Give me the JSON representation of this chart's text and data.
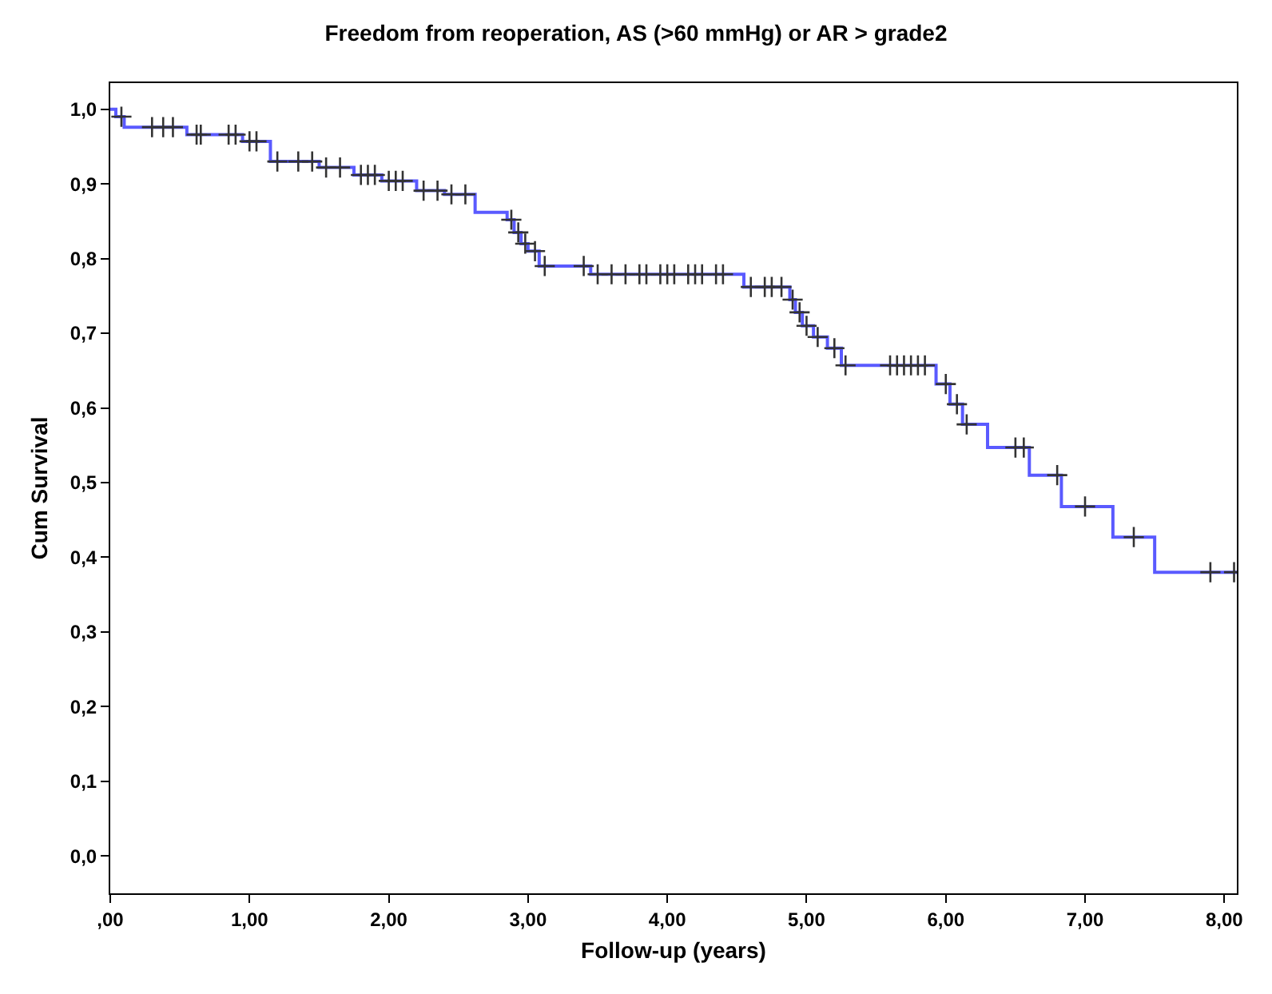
{
  "chart_data": {
    "type": "step",
    "title": "Freedom from reoperation, AS (>60 mmHg) or AR > grade2",
    "xlabel": "Follow-up (years)",
    "ylabel": "Cum Survival",
    "xlim": [
      0,
      8.09
    ],
    "ylim": [
      -0.05,
      1.035
    ],
    "xticks": [
      {
        "value": 0,
        "label": ",00"
      },
      {
        "value": 1,
        "label": "1,00"
      },
      {
        "value": 2,
        "label": "2,00"
      },
      {
        "value": 3,
        "label": "3,00"
      },
      {
        "value": 4,
        "label": "4,00"
      },
      {
        "value": 5,
        "label": "5,00"
      },
      {
        "value": 6,
        "label": "6,00"
      },
      {
        "value": 7,
        "label": "7,00"
      },
      {
        "value": 8,
        "label": "8,00"
      }
    ],
    "yticks": [
      {
        "value": 0,
        "label": "0,0"
      },
      {
        "value": 0.1,
        "label": "0,1"
      },
      {
        "value": 0.2,
        "label": "0,2"
      },
      {
        "value": 0.3,
        "label": "0,3"
      },
      {
        "value": 0.4,
        "label": "0,4"
      },
      {
        "value": 0.5,
        "label": "0,5"
      },
      {
        "value": 0.6,
        "label": "0,6"
      },
      {
        "value": 0.7,
        "label": "0,7"
      },
      {
        "value": 0.8,
        "label": "0,8"
      },
      {
        "value": 0.9,
        "label": "0,9"
      },
      {
        "value": 1,
        "label": "1,0"
      }
    ],
    "grid": false,
    "marker": "none",
    "line_style": "solid",
    "series": [
      {
        "color": "#5a5aff",
        "x": [
          0,
          0.04,
          0.1,
          0.55,
          0.95,
          1.15,
          1.5,
          1.75,
          1.95,
          2.2,
          2.4,
          2.62,
          2.85,
          2.9,
          2.95,
          3.0,
          3.08,
          3.45,
          4.55,
          4.88,
          4.92,
          4.97,
          5.05,
          5.15,
          5.25,
          5.93,
          6.03,
          6.12,
          6.3,
          6.6,
          6.83,
          7.2,
          7.5,
          8.09
        ],
        "values": [
          1.0,
          0.99,
          0.976,
          0.966,
          0.957,
          0.93,
          0.922,
          0.912,
          0.904,
          0.891,
          0.886,
          0.862,
          0.852,
          0.835,
          0.82,
          0.81,
          0.79,
          0.779,
          0.762,
          0.745,
          0.728,
          0.71,
          0.695,
          0.68,
          0.657,
          0.632,
          0.605,
          0.578,
          0.547,
          0.51,
          0.468,
          0.427,
          0.38,
          0.38
        ]
      },
      {
        "type": "scatter",
        "color": "#333333",
        "marker": "cross",
        "x": [
          0.08,
          0.3,
          0.38,
          0.45,
          0.62,
          0.65,
          0.85,
          0.9,
          1.0,
          1.05,
          1.2,
          1.35,
          1.45,
          1.55,
          1.65,
          1.8,
          1.85,
          1.9,
          2.0,
          2.05,
          2.1,
          2.25,
          2.35,
          2.45,
          2.55,
          2.88,
          2.93,
          2.98,
          3.05,
          3.12,
          3.4,
          3.5,
          3.6,
          3.7,
          3.8,
          3.85,
          3.95,
          4.0,
          4.05,
          4.15,
          4.2,
          4.25,
          4.35,
          4.4,
          4.6,
          4.7,
          4.75,
          4.82,
          4.9,
          4.95,
          5.0,
          5.08,
          5.2,
          5.28,
          5.6,
          5.65,
          5.7,
          5.75,
          5.8,
          5.85,
          6.0,
          6.08,
          6.15,
          6.5,
          6.56,
          6.8,
          7.0,
          7.35,
          7.9,
          8.07
        ],
        "values": [
          0.99,
          0.976,
          0.976,
          0.976,
          0.966,
          0.966,
          0.966,
          0.966,
          0.957,
          0.957,
          0.93,
          0.93,
          0.93,
          0.922,
          0.922,
          0.912,
          0.912,
          0.912,
          0.904,
          0.904,
          0.904,
          0.891,
          0.891,
          0.886,
          0.886,
          0.852,
          0.835,
          0.82,
          0.81,
          0.79,
          0.79,
          0.779,
          0.779,
          0.779,
          0.779,
          0.779,
          0.779,
          0.779,
          0.779,
          0.779,
          0.779,
          0.779,
          0.779,
          0.779,
          0.762,
          0.762,
          0.762,
          0.762,
          0.745,
          0.728,
          0.71,
          0.695,
          0.68,
          0.657,
          0.657,
          0.657,
          0.657,
          0.657,
          0.657,
          0.657,
          0.632,
          0.605,
          0.578,
          0.547,
          0.547,
          0.51,
          0.468,
          0.427,
          0.38,
          0.38
        ]
      }
    ]
  }
}
